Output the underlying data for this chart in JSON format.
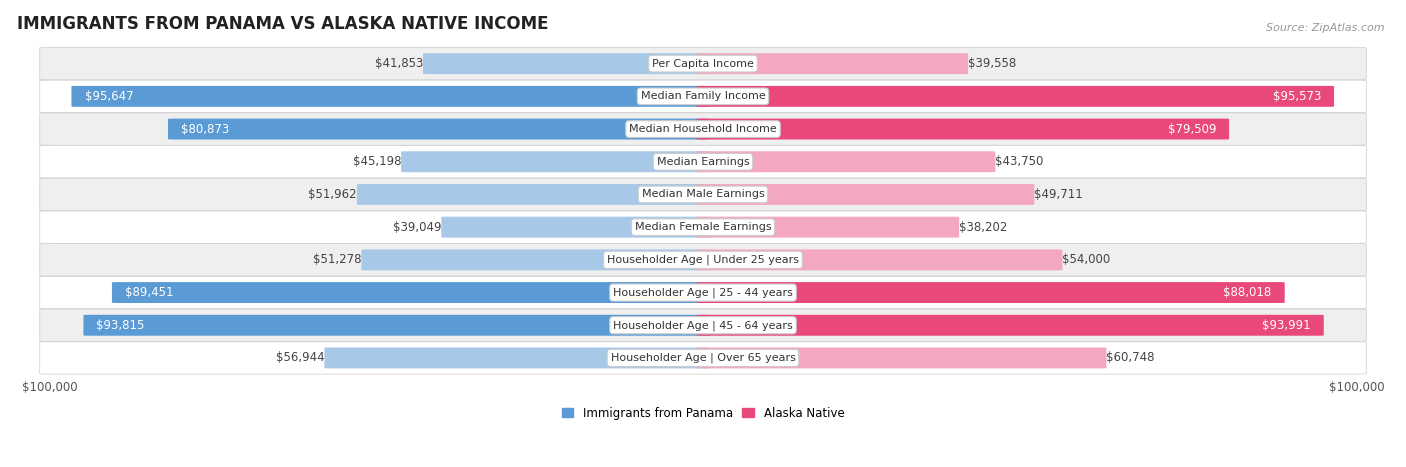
{
  "title": "IMMIGRANTS FROM PANAMA VS ALASKA NATIVE INCOME",
  "source": "Source: ZipAtlas.com",
  "categories": [
    "Per Capita Income",
    "Median Family Income",
    "Median Household Income",
    "Median Earnings",
    "Median Male Earnings",
    "Median Female Earnings",
    "Householder Age | Under 25 years",
    "Householder Age | 25 - 44 years",
    "Householder Age | 45 - 64 years",
    "Householder Age | Over 65 years"
  ],
  "panama_values": [
    41853,
    95647,
    80873,
    45198,
    51962,
    39049,
    51278,
    89451,
    93815,
    56944
  ],
  "alaska_values": [
    39558,
    95573,
    79509,
    43750,
    49711,
    38202,
    54000,
    88018,
    93991,
    60748
  ],
  "panama_labels": [
    "$41,853",
    "$95,647",
    "$80,873",
    "$45,198",
    "$51,962",
    "$39,049",
    "$51,278",
    "$89,451",
    "$93,815",
    "$56,944"
  ],
  "alaska_labels": [
    "$39,558",
    "$95,573",
    "$79,509",
    "$43,750",
    "$49,711",
    "$38,202",
    "$54,000",
    "$88,018",
    "$93,991",
    "$60,748"
  ],
  "panama_color_light": "#a8c8e8",
  "panama_color_dark": "#5b9bd5",
  "alaska_color_light": "#f4a7c0",
  "alaska_color_dark": "#e8497a",
  "max_value": 100000,
  "legend_panama": "Immigrants from Panama",
  "legend_alaska": "Alaska Native",
  "bg_color": "#ffffff",
  "row_bg_light": "#efefef",
  "row_bg_white": "#ffffff",
  "bar_height": 0.62,
  "label_fontsize": 8.5,
  "title_fontsize": 12,
  "source_fontsize": 8,
  "category_fontsize": 8,
  "dark_threshold": 75000,
  "inside_label_color": "#ffffff",
  "outside_label_color": "#444444"
}
